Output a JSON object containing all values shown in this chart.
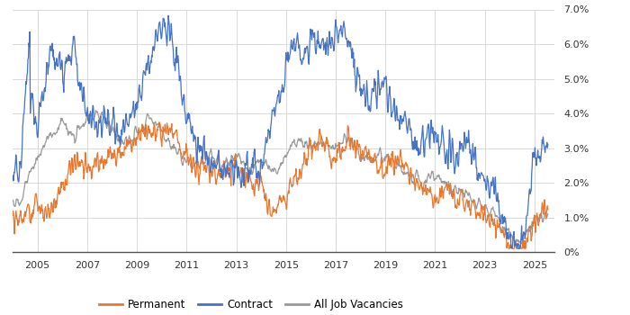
{
  "xlim_start": 2004.0,
  "xlim_end": 2025.8,
  "ylim": [
    0,
    0.07
  ],
  "yticks": [
    0,
    0.01,
    0.02,
    0.03,
    0.04,
    0.05,
    0.06,
    0.07
  ],
  "ytick_labels": [
    "0%",
    "1.0%",
    "2.0%",
    "3.0%",
    "4.0%",
    "5.0%",
    "6.0%",
    "7.0%"
  ],
  "xtick_years": [
    2005,
    2007,
    2009,
    2011,
    2013,
    2015,
    2017,
    2019,
    2021,
    2023,
    2025
  ],
  "colors": {
    "permanent": "#E8762C",
    "contract": "#4472C4",
    "all_vacancies": "#999999"
  },
  "legend_labels": [
    "Permanent",
    "Contract",
    "All Job Vacancies"
  ],
  "background_color": "#ffffff",
  "grid_color": "#d8d8d8"
}
